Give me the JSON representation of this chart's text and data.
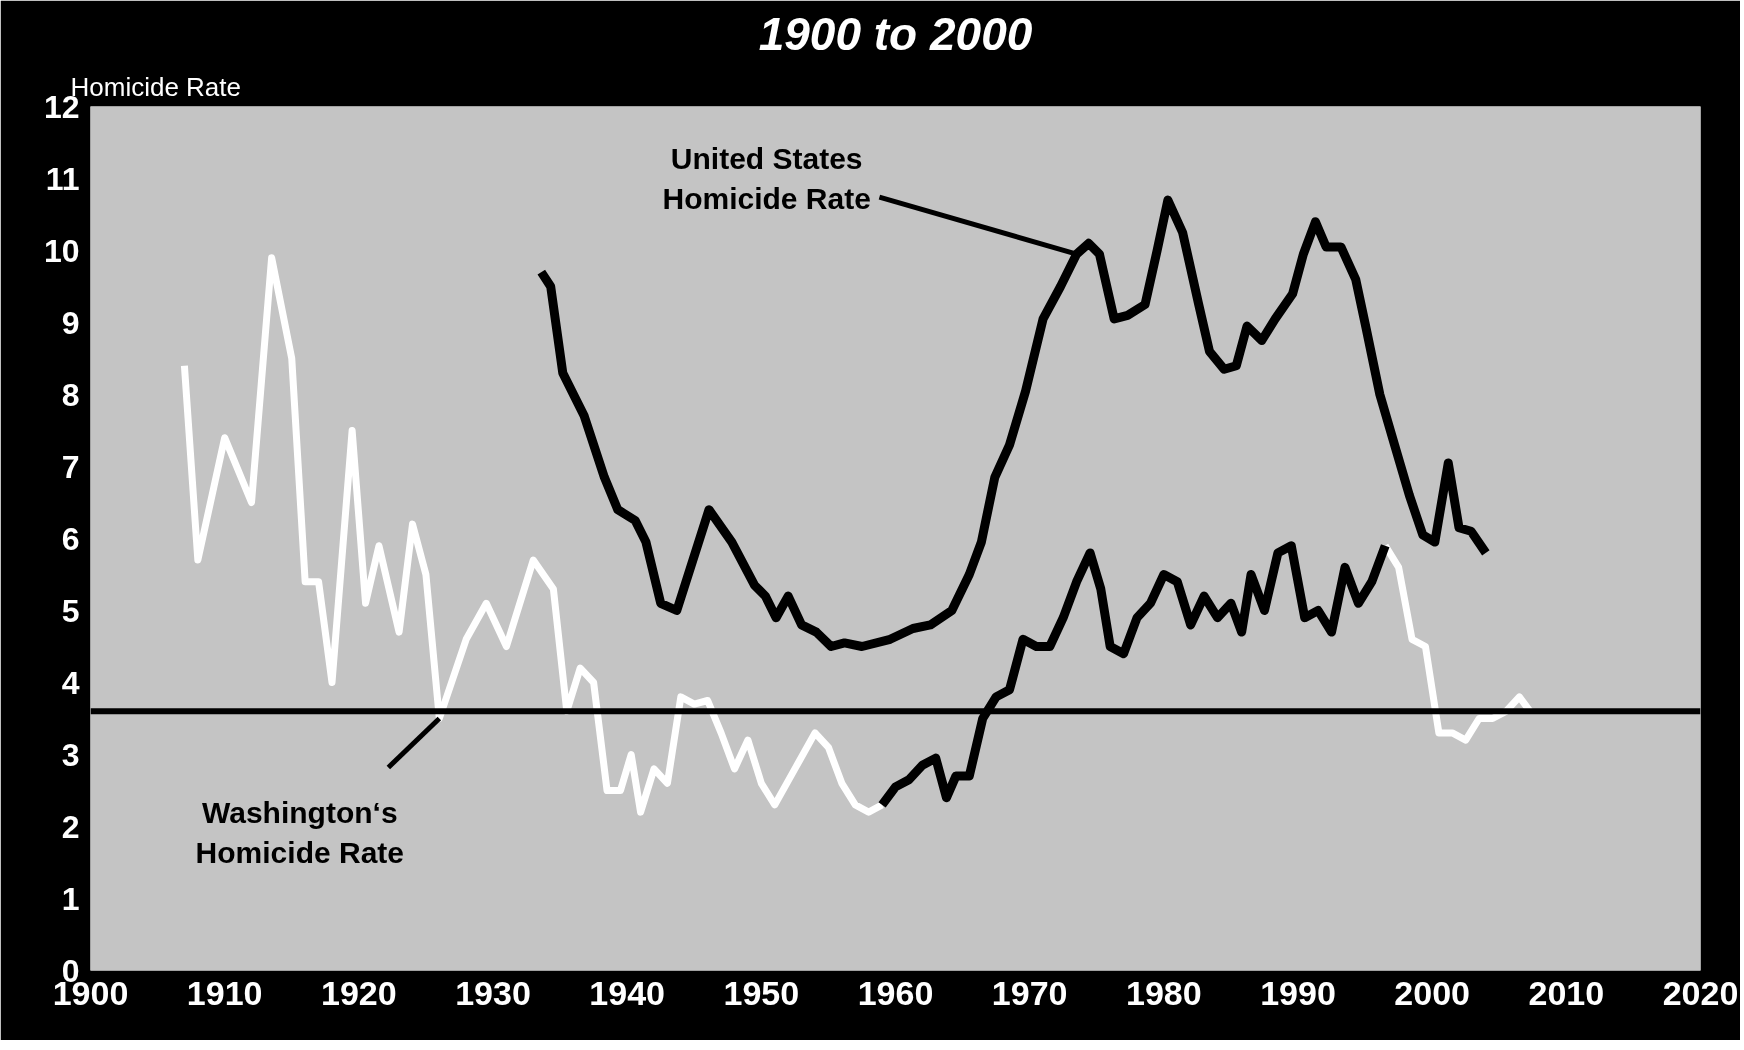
{
  "chart_data": {
    "type": "line",
    "title": "1900 to 2000",
    "ylabel": "Homicide Rate",
    "xlim": [
      1900,
      2020
    ],
    "ylim": [
      0,
      12
    ],
    "xticks": [
      1900,
      1910,
      1920,
      1930,
      1940,
      1950,
      1960,
      1970,
      1980,
      1990,
      2000,
      2010,
      2020
    ],
    "yticks": [
      0,
      1,
      2,
      3,
      4,
      5,
      6,
      7,
      8,
      9,
      10,
      11,
      12
    ],
    "grid": false,
    "marker": "none",
    "line_style": "solid",
    "series": [
      {
        "color": "#000000",
        "x": [
          1933.6,
          1934.3,
          1935.2,
          1936.8,
          1938.3,
          1939.3,
          1940.6,
          1941.4,
          1942.5,
          1943.7,
          1946.1,
          1947.8,
          1949.5,
          1950.3,
          1951.1,
          1952.0,
          1953.0,
          1954.1,
          1955.2,
          1956.2,
          1957.5,
          1959.6,
          1961.3,
          1962.6,
          1964.2,
          1965.5,
          1966.4,
          1967.4,
          1968.5,
          1969.7,
          1971.0,
          1972.3,
          1973.5,
          1974.4,
          1975.2,
          1976.3,
          1977.3,
          1978.6,
          1979.5,
          1980.3,
          1981.4,
          1982.6,
          1983.4,
          1984.5,
          1985.4,
          1986.2,
          1987.3,
          1988.3,
          1989.6,
          1990.4,
          1991.3,
          1992.1,
          1993.2,
          1994.3,
          1995.1,
          1996.1,
          1997.2,
          1998.3,
          1999.3,
          2000.2,
          2001.2,
          2002.0,
          2002.9,
          2004.0
        ],
        "values": [
          9.7,
          9.5,
          8.3,
          7.7,
          6.85,
          6.4,
          6.25,
          5.95,
          5.1,
          5.0,
          6.4,
          5.95,
          5.35,
          5.2,
          4.9,
          5.2,
          4.8,
          4.7,
          4.5,
          4.55,
          4.5,
          4.6,
          4.75,
          4.8,
          5.0,
          5.5,
          5.95,
          6.85,
          7.3,
          8.05,
          9.05,
          9.5,
          9.95,
          10.1,
          9.95,
          9.05,
          9.1,
          9.25,
          10.0,
          10.7,
          10.25,
          9.25,
          8.6,
          8.35,
          8.4,
          8.95,
          8.75,
          9.05,
          9.4,
          9.95,
          10.4,
          10.05,
          10.05,
          9.6,
          8.9,
          8.0,
          7.3,
          6.6,
          6.05,
          5.95,
          7.05,
          6.15,
          6.1,
          5.8
        ]
      },
      {
        "color": "#ffffff",
        "x": [
          1907,
          1908,
          1910,
          1912,
          1913.5,
          1915,
          1916,
          1917,
          1918,
          1919.5,
          1920.5,
          1921.5,
          1923,
          1924,
          1925,
          1926,
          1928,
          1929.5,
          1931,
          1933,
          1934.5,
          1935.5,
          1936.5,
          1937.5,
          1938.5,
          1939.5,
          1940.3,
          1941,
          1942,
          1943,
          1944,
          1945,
          1946,
          1947,
          1948,
          1949,
          1950,
          1951,
          1952.5,
          1954,
          1955,
          1956,
          1957,
          1958,
          1959,
          1996.5,
          1997.5,
          1998.5,
          1999.5,
          2000.5,
          2001.5,
          2002.5,
          2003.5,
          2004.5,
          2005.5,
          2006.5,
          2007.3
        ],
        "values": [
          8.4,
          5.7,
          7.4,
          6.5,
          9.9,
          8.5,
          5.4,
          5.4,
          4.0,
          7.5,
          5.1,
          5.9,
          4.7,
          6.2,
          5.5,
          3.5,
          4.6,
          5.1,
          4.5,
          5.7,
          5.3,
          3.6,
          4.2,
          4.0,
          2.5,
          2.5,
          3.0,
          2.2,
          2.8,
          2.6,
          3.8,
          3.7,
          3.75,
          3.3,
          2.8,
          3.2,
          2.6,
          2.3,
          2.8,
          3.3,
          3.1,
          2.6,
          2.3,
          2.2,
          2.3,
          5.9,
          5.6,
          4.6,
          4.5,
          3.3,
          3.3,
          3.2,
          3.5,
          3.5,
          3.6,
          3.8,
          3.6
        ]
      },
      {
        "color": "#000000",
        "x": [
          1959,
          1960,
          1961,
          1962,
          1963,
          1963.8,
          1964.5,
          1965.5,
          1966.5,
          1967.5,
          1968.5,
          1969.5,
          1970.5,
          1971.5,
          1972.5,
          1973.5,
          1974.5,
          1975.3,
          1976,
          1977,
          1978,
          1979,
          1980,
          1981,
          1982,
          1983,
          1984,
          1985,
          1985.8,
          1986.5,
          1987.5,
          1988.5,
          1989.5,
          1990.5,
          1991.5,
          1992.5,
          1993.5,
          1994.5,
          1995.5,
          1996.5
        ],
        "values": [
          2.3,
          2.55,
          2.65,
          2.85,
          2.95,
          2.4,
          2.7,
          2.7,
          3.5,
          3.8,
          3.9,
          4.6,
          4.5,
          4.5,
          4.9,
          5.4,
          5.8,
          5.3,
          4.5,
          4.4,
          4.9,
          5.1,
          5.5,
          5.4,
          4.8,
          5.2,
          4.9,
          5.1,
          4.7,
          5.5,
          5.0,
          5.8,
          5.9,
          4.9,
          5.0,
          4.7,
          5.6,
          5.1,
          5.4,
          5.9
        ]
      }
    ],
    "ref_lines": [
      {
        "axis": "y",
        "value": 3.6,
        "color": "#000000"
      }
    ],
    "annotations": [
      {
        "text": "United States\nHomicide Rate",
        "x": 1973.5,
        "y": 9.95
      },
      {
        "text": "Washington‘s\nHomicide Rate",
        "x": 1926,
        "y": 3.5
      }
    ]
  }
}
